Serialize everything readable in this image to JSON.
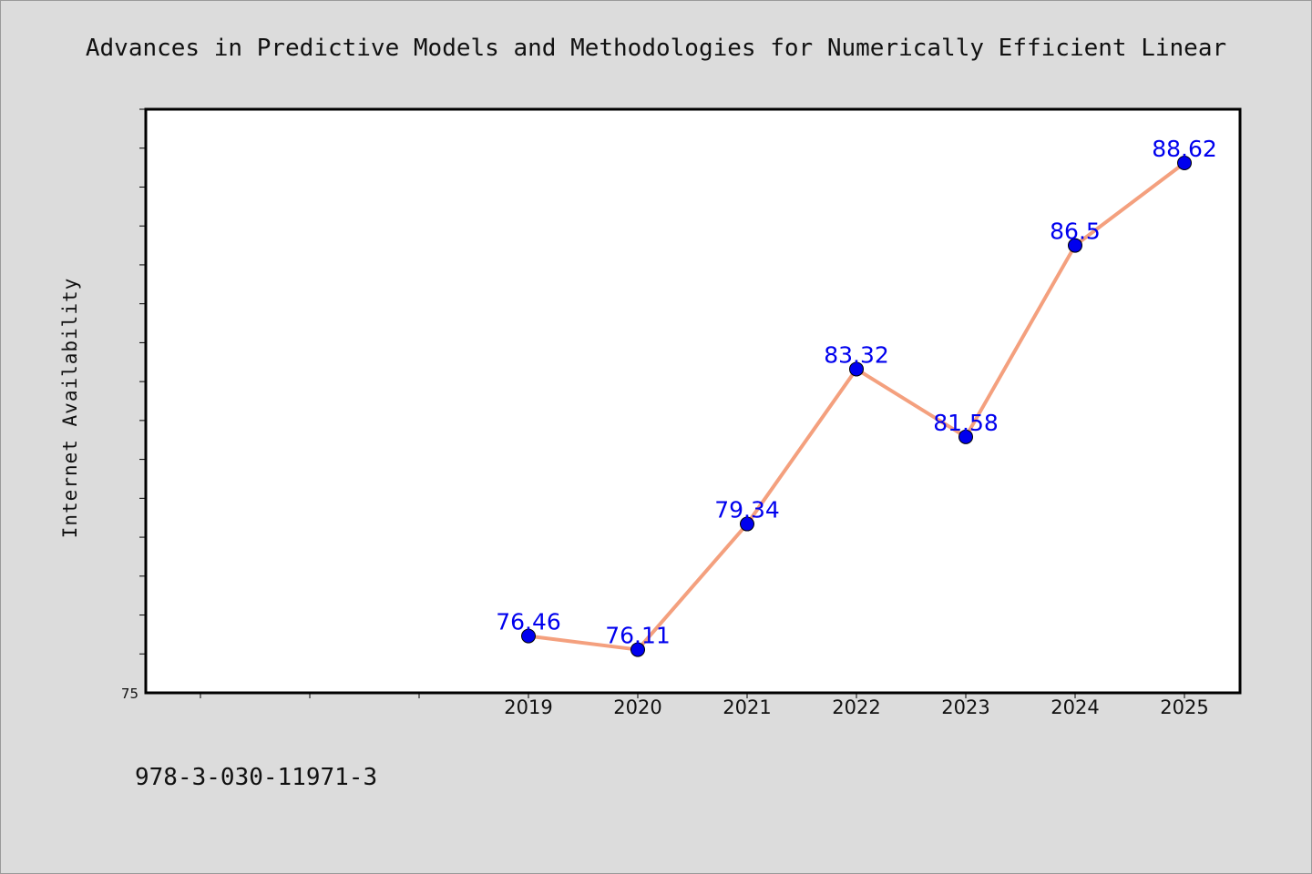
{
  "chart_data": {
    "type": "line",
    "title": "Advances in Predictive Models and Methodologies for Numerically Efficient Linear",
    "xlabel": "",
    "ylabel": "Internet Availability",
    "x": [
      "2019",
      "2020",
      "2021",
      "2022",
      "2023",
      "2024",
      "2025"
    ],
    "series": [
      {
        "values": [
          76.46,
          76.11,
          79.34,
          83.32,
          81.58,
          86.5,
          88.62
        ]
      }
    ],
    "data_labels": [
      "76.46",
      "76.11",
      "79.34",
      "83.32",
      "81.58",
      "86.5",
      "88.62"
    ],
    "ylim": [
      75,
      90
    ],
    "y_tick_labels": [
      {
        "value": 75,
        "label": "75"
      }
    ],
    "grid": false,
    "legend": "none",
    "line_color": "#f4a07e",
    "marker_color": "#0000ee"
  },
  "footnote": "978-3-030-11971-3"
}
